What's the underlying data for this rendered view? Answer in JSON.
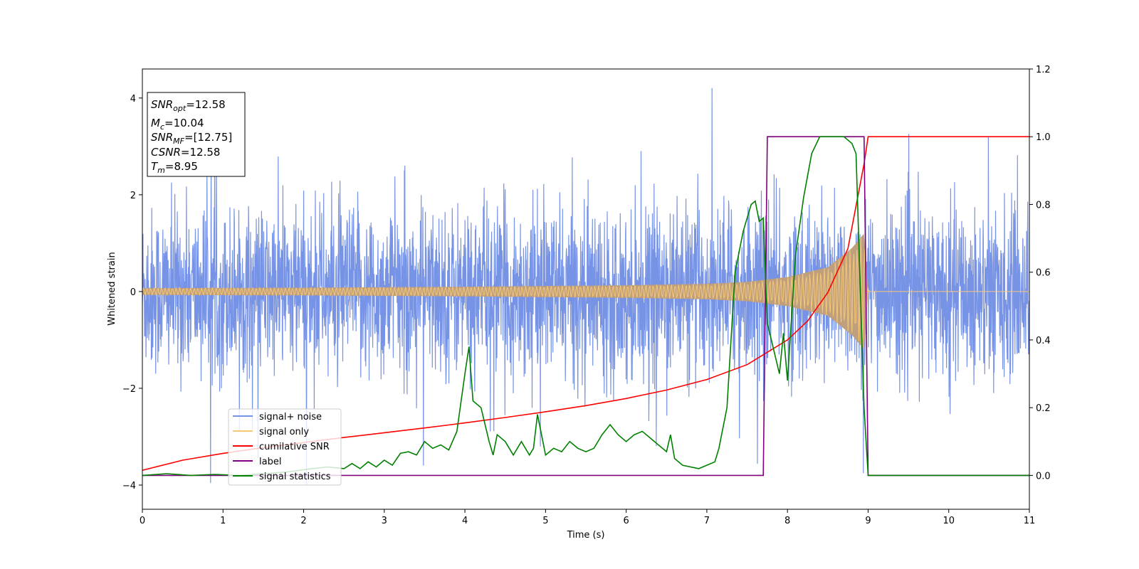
{
  "chart_data": {
    "type": "line",
    "xlabel": "Time (s)",
    "ylabel": "Whitened strain",
    "xlim": [
      0,
      11
    ],
    "ylim": [
      -4.5,
      4.6
    ],
    "y2lim": [
      -0.1,
      1.2
    ],
    "xticks": [
      "0",
      "1",
      "2",
      "3",
      "4",
      "5",
      "6",
      "7",
      "8",
      "9",
      "10",
      "11"
    ],
    "yticks": [
      "−4",
      "−2",
      "0",
      "2",
      "4"
    ],
    "y2ticks": [
      "0.0",
      "0.2",
      "0.4",
      "0.6",
      "0.8",
      "1.0",
      "1.2"
    ],
    "grid": false,
    "legend_position": "lower-left",
    "colors": {
      "signal_noise": "#7793e6",
      "signal_only": "#f5c878",
      "overlap": "#bf9f7c",
      "cumulative_snr": "#ff0000",
      "label": "#800080",
      "signal_statistics": "#008000"
    },
    "stats_box": {
      "snr_opt": {
        "base": "SNR",
        "sub": "opt",
        "value": "=12.58"
      },
      "mc": {
        "base": "M",
        "sub": "c",
        "value": "=10.04"
      },
      "snr_mf": {
        "base": "SNR",
        "sub": "MF",
        "value": "=[12.75]"
      },
      "csnr": {
        "base": "CSNR",
        "value": "=12.58"
      },
      "tm": {
        "base": "T",
        "sub": "m",
        "value": "=8.95"
      }
    },
    "series": [
      {
        "name": "signal+ noise",
        "axis": "left",
        "style": "noise band",
        "typical_amplitude": [
          -2.0,
          2.0
        ],
        "peak_range": [
          -4.0,
          4.2
        ]
      },
      {
        "name": "signal only",
        "axis": "left",
        "style": "chirp",
        "envelope": {
          "x": [
            0,
            2,
            4,
            6,
            7,
            7.5,
            8,
            8.5,
            8.8,
            8.95,
            9.0,
            11
          ],
          "y": [
            0.07,
            0.08,
            0.1,
            0.13,
            0.16,
            0.2,
            0.3,
            0.5,
            0.9,
            1.2,
            0,
            0
          ]
        }
      },
      {
        "name": "cumilative SNR",
        "axis": "right",
        "x": [
          0,
          0.5,
          1,
          1.5,
          2,
          2.5,
          3,
          3.5,
          4,
          4.5,
          5,
          5.5,
          6,
          6.5,
          7,
          7.5,
          8,
          8.25,
          8.5,
          8.75,
          8.95,
          9.0,
          11
        ],
        "y": [
          0.015,
          0.045,
          0.065,
          0.082,
          0.097,
          0.112,
          0.126,
          0.14,
          0.155,
          0.171,
          0.188,
          0.206,
          0.227,
          0.252,
          0.283,
          0.327,
          0.4,
          0.456,
          0.54,
          0.67,
          0.92,
          1.0,
          1.0
        ]
      },
      {
        "name": "label",
        "axis": "right",
        "x": [
          0,
          7.7,
          7.75,
          8.95,
          9.0,
          11
        ],
        "y": [
          0,
          0,
          1,
          1,
          0,
          0
        ]
      },
      {
        "name": "signal statistics",
        "axis": "right",
        "x": [
          0,
          0.3,
          0.6,
          0.9,
          1.2,
          1.5,
          1.8,
          2.1,
          2.3,
          2.5,
          2.6,
          2.7,
          2.8,
          2.9,
          3.0,
          3.1,
          3.2,
          3.3,
          3.4,
          3.5,
          3.6,
          3.7,
          3.8,
          3.9,
          4.0,
          4.05,
          4.1,
          4.2,
          4.3,
          4.35,
          4.4,
          4.5,
          4.6,
          4.7,
          4.8,
          4.85,
          4.9,
          5.0,
          5.1,
          5.2,
          5.3,
          5.4,
          5.5,
          5.6,
          5.7,
          5.8,
          5.9,
          6.0,
          6.1,
          6.2,
          6.3,
          6.4,
          6.5,
          6.55,
          6.6,
          6.7,
          6.9,
          7.0,
          7.1,
          7.15,
          7.25,
          7.35,
          7.45,
          7.55,
          7.6,
          7.65,
          7.7,
          7.75,
          7.85,
          7.9,
          7.95,
          8.0,
          8.1,
          8.2,
          8.3,
          8.4,
          8.5,
          8.6,
          8.7,
          8.8,
          8.85,
          8.95,
          9.0,
          11
        ],
        "y": [
          0.0,
          0.005,
          0.0,
          0.003,
          0.0,
          0.005,
          0.01,
          0.02,
          0.025,
          0.02,
          0.035,
          0.02,
          0.04,
          0.025,
          0.045,
          0.03,
          0.065,
          0.07,
          0.06,
          0.1,
          0.08,
          0.09,
          0.075,
          0.13,
          0.3,
          0.38,
          0.22,
          0.2,
          0.1,
          0.06,
          0.12,
          0.1,
          0.06,
          0.1,
          0.06,
          0.08,
          0.18,
          0.06,
          0.08,
          0.07,
          0.1,
          0.08,
          0.07,
          0.08,
          0.12,
          0.15,
          0.12,
          0.1,
          0.12,
          0.13,
          0.11,
          0.09,
          0.07,
          0.12,
          0.05,
          0.03,
          0.02,
          0.03,
          0.04,
          0.08,
          0.2,
          0.6,
          0.72,
          0.8,
          0.81,
          0.75,
          0.76,
          0.45,
          0.35,
          0.3,
          0.42,
          0.28,
          0.65,
          0.82,
          0.95,
          1.0,
          1.0,
          1.0,
          1.0,
          0.98,
          0.95,
          0.2,
          0.0,
          0.0
        ]
      }
    ]
  }
}
